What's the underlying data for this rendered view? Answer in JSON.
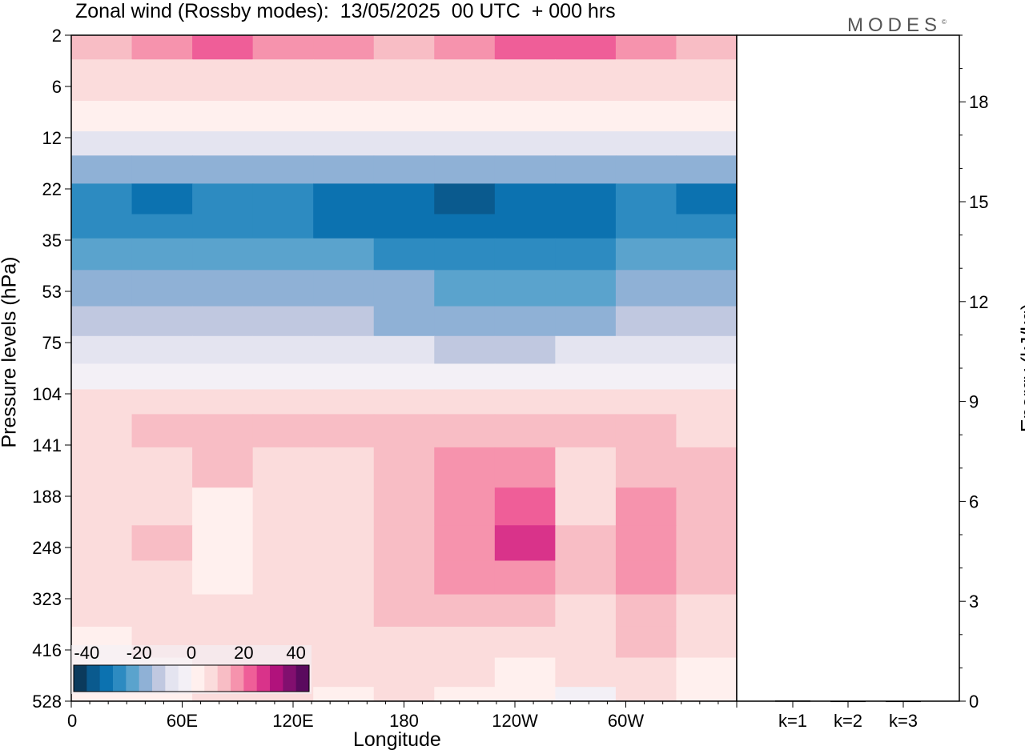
{
  "title": "Zonal wind (Rossby modes):  13/05/2025  00 UTC  + 000 hrs",
  "brand": "MODES",
  "brand_mark": "©",
  "colors": {
    "neg": [
      "#0b3a5c",
      "#0a5a8e",
      "#0c72b0",
      "#2d8bc1",
      "#5aa3cd",
      "#8fb1d6",
      "#c0c8e0",
      "#e4e4f0",
      "#f3f0f6"
    ],
    "pos": [
      "#fff0ee",
      "#fbdcdc",
      "#f8bdc5",
      "#f693ad",
      "#ef5e98",
      "#d9338a",
      "#b1127c",
      "#820f6f",
      "#5a0a5e"
    ]
  },
  "chart_data": [
    {
      "type": "heatmap",
      "title": "Zonal wind (Rossby modes):  13/05/2025  00 UTC  + 000 hrs",
      "xlabel": "Longitude",
      "ylabel": "Pressure levels (hPa)",
      "x_ticks": [
        "0",
        "60E",
        "120E",
        "180",
        "120W",
        "60W"
      ],
      "x_tick_values": [
        0,
        60,
        120,
        180,
        240,
        300
      ],
      "xlim": [
        0,
        360
      ],
      "y_ticks": [
        "2",
        "6",
        "12",
        "22",
        "35",
        "53",
        "75",
        "104",
        "141",
        "188",
        "248",
        "323",
        "416",
        "528"
      ],
      "yscale": "log",
      "ylim": [
        528,
        2
      ],
      "colorbar": {
        "tick_labels": [
          "-40",
          "-20",
          "0",
          "20",
          "40"
        ],
        "tick_values": [
          -40,
          -20,
          0,
          20,
          40
        ],
        "bounds": [
          -45,
          45
        ]
      },
      "levels": [
        {
          "p": "2",
          "band": [
            2,
            3,
            4,
            3,
            3,
            2,
            3,
            4,
            4,
            3,
            2
          ]
        },
        {
          "p": "3",
          "band": [
            1,
            1,
            1,
            1,
            1,
            1,
            1,
            1,
            1,
            1,
            1
          ]
        },
        {
          "p": "4",
          "band": [
            0,
            0,
            0,
            0,
            0,
            0,
            0,
            0,
            0,
            0,
            0
          ]
        },
        {
          "p": "5",
          "band": [
            -2,
            -2,
            -2,
            -2,
            -2,
            -2,
            -2,
            -2,
            -2,
            -2,
            -2
          ]
        },
        {
          "p": "6",
          "band": [
            -4,
            -4,
            -4,
            -4,
            -4,
            -4,
            -4,
            -4,
            -4,
            -4,
            -4
          ]
        },
        {
          "p": "8",
          "band": [
            -6,
            -7,
            -6,
            -6,
            -7,
            -7,
            -8,
            -7,
            -7,
            -6,
            -7
          ]
        },
        {
          "p": "10",
          "band": [
            -6,
            -6,
            -6,
            -6,
            -7,
            -7,
            -7,
            -7,
            -7,
            -6,
            -6
          ]
        },
        {
          "p": "12",
          "band": [
            -5,
            -5,
            -5,
            -5,
            -5,
            -6,
            -6,
            -6,
            -6,
            -5,
            -5
          ]
        },
        {
          "p": "17",
          "band": [
            -4,
            -4,
            -4,
            -4,
            -4,
            -4,
            -5,
            -5,
            -5,
            -4,
            -4
          ]
        },
        {
          "p": "22",
          "band": [
            -3,
            -3,
            -3,
            -3,
            -3,
            -4,
            -4,
            -4,
            -4,
            -3,
            -3
          ]
        },
        {
          "p": "28",
          "band": [
            -2,
            -2,
            -2,
            -2,
            -2,
            -2,
            -3,
            -3,
            -2,
            -2,
            -2
          ]
        },
        {
          "p": "35",
          "band": [
            -1,
            -1,
            -1,
            -1,
            -1,
            -1,
            -1,
            -1,
            -1,
            -1,
            -1
          ]
        },
        {
          "p": "43",
          "band": [
            1,
            1,
            1,
            1,
            1,
            1,
            1,
            1,
            1,
            1,
            1
          ]
        },
        {
          "p": "53",
          "band": [
            1,
            2,
            2,
            2,
            2,
            2,
            2,
            2,
            2,
            2,
            1
          ]
        },
        {
          "p": "75",
          "band": [
            1,
            1,
            2,
            1,
            1,
            2,
            3,
            3,
            1,
            2,
            2
          ]
        },
        {
          "p": "104",
          "band": [
            1,
            1,
            0,
            1,
            1,
            2,
            3,
            4,
            1,
            3,
            2
          ]
        },
        {
          "p": "141",
          "band": [
            1,
            2,
            0,
            1,
            1,
            2,
            3,
            5,
            2,
            3,
            2
          ]
        },
        {
          "p": "188",
          "band": [
            1,
            1,
            0,
            1,
            1,
            2,
            3,
            3,
            2,
            3,
            2
          ]
        },
        {
          "p": "248",
          "band": [
            1,
            1,
            1,
            1,
            1,
            2,
            2,
            2,
            1,
            2,
            1
          ]
        },
        {
          "p": "323",
          "band": [
            0,
            1,
            1,
            1,
            1,
            1,
            1,
            1,
            1,
            2,
            1
          ]
        },
        {
          "p": "416",
          "band": [
            0,
            0,
            1,
            1,
            1,
            1,
            1,
            0,
            1,
            1,
            0
          ]
        },
        {
          "p": "528",
          "band": [
            0,
            0,
            1,
            1,
            0,
            1,
            0,
            0,
            -1,
            1,
            0
          ]
        }
      ]
    },
    {
      "type": "bar",
      "ylabel": "Energy (kJ/kg)",
      "categories": [
        "k=1",
        "k=2",
        "k=3"
      ],
      "values": [
        0.02,
        0.01,
        0.01
      ],
      "ylim": [
        0,
        20
      ],
      "y_ticks": [
        "0",
        "3",
        "6",
        "9",
        "12",
        "15",
        "18"
      ],
      "y_tick_values": [
        0,
        3,
        6,
        9,
        12,
        15,
        18
      ]
    }
  ]
}
